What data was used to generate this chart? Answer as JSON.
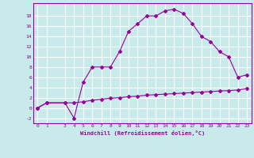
{
  "xlabel": "Windchill (Refroidissement éolien,°C)",
  "background_color": "#c8eaea",
  "line_color": "#990099",
  "grid_color": "#ffffff",
  "xlim": [
    -0.5,
    23.5
  ],
  "ylim": [
    -3,
    20.5
  ],
  "yticks": [
    -2,
    0,
    2,
    4,
    6,
    8,
    10,
    12,
    14,
    16,
    18
  ],
  "xticks": [
    0,
    1,
    3,
    4,
    5,
    6,
    7,
    8,
    9,
    10,
    11,
    12,
    13,
    14,
    15,
    16,
    17,
    18,
    19,
    20,
    21,
    22,
    23
  ],
  "series1_x": [
    0,
    1,
    3,
    4,
    5,
    6,
    7,
    8,
    9,
    10,
    11,
    12,
    13,
    14,
    15,
    16,
    17,
    18,
    19,
    20,
    21,
    22,
    23
  ],
  "series1_y": [
    0,
    1,
    1,
    -2,
    5,
    8,
    8,
    8,
    11,
    15,
    16.5,
    18,
    18,
    19,
    19.3,
    18.5,
    16.5,
    14,
    13,
    11,
    10,
    6,
    6.5
  ],
  "series2_x": [
    0,
    1,
    3,
    4,
    5,
    6,
    7,
    8,
    9,
    10,
    11,
    12,
    13,
    14,
    15,
    16,
    17,
    18,
    19,
    20,
    21,
    22,
    23
  ],
  "series2_y": [
    0,
    1,
    1,
    1,
    1.2,
    1.5,
    1.7,
    1.9,
    2.0,
    2.2,
    2.3,
    2.5,
    2.6,
    2.7,
    2.8,
    2.9,
    3.0,
    3.1,
    3.2,
    3.3,
    3.4,
    3.5,
    3.8
  ]
}
